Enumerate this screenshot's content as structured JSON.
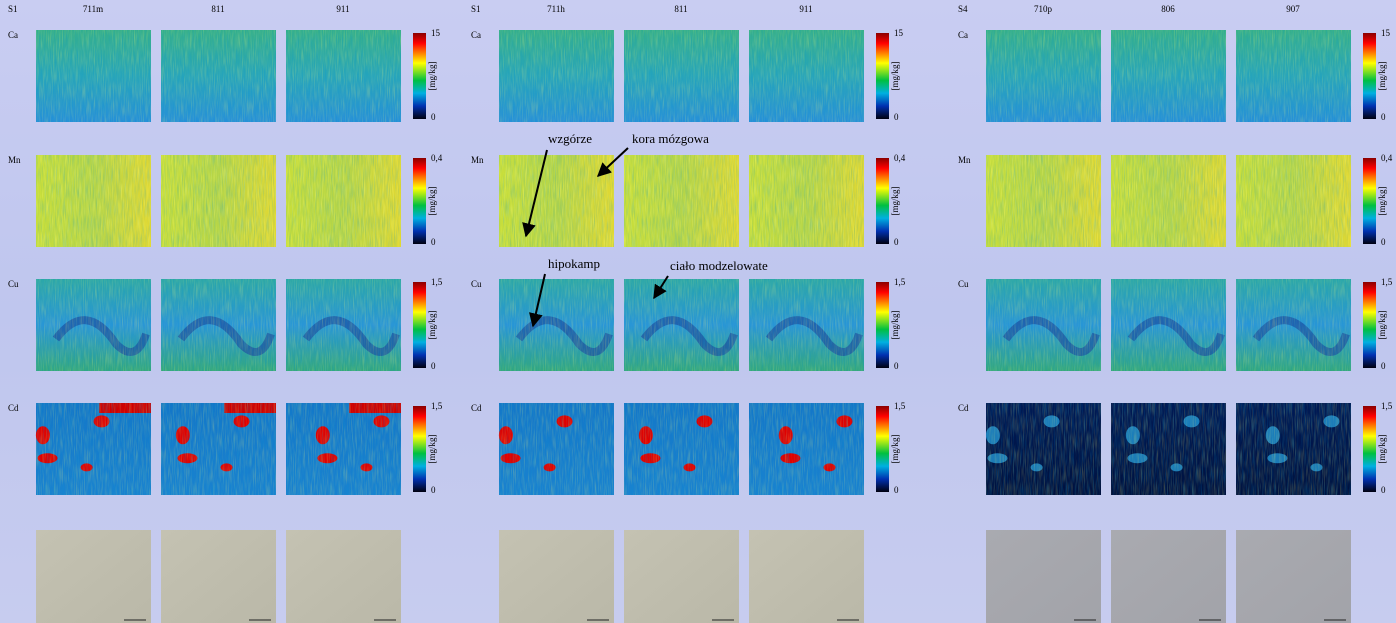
{
  "panels": [
    {
      "sample": "S1",
      "columns": [
        "711m",
        "811",
        "911"
      ]
    },
    {
      "sample": "S1",
      "columns": [
        "711h",
        "811",
        "911"
      ]
    },
    {
      "sample": "S4",
      "columns": [
        "710p",
        "806",
        "907"
      ]
    }
  ],
  "rows": [
    {
      "element": "Ca",
      "max": "15",
      "min": "0"
    },
    {
      "element": "Mn",
      "max": "0,4",
      "min": "0"
    },
    {
      "element": "Cu",
      "max": "1,5",
      "min": "0"
    },
    {
      "element": "Cd",
      "max": "1,5",
      "min": "0"
    }
  ],
  "unit": "[mg/kg]",
  "annotations": [
    {
      "text": "wzgórze"
    },
    {
      "text": "kora mózgowa"
    },
    {
      "text": "hipokamp"
    },
    {
      "text": "ciało modzelowate"
    }
  ]
}
